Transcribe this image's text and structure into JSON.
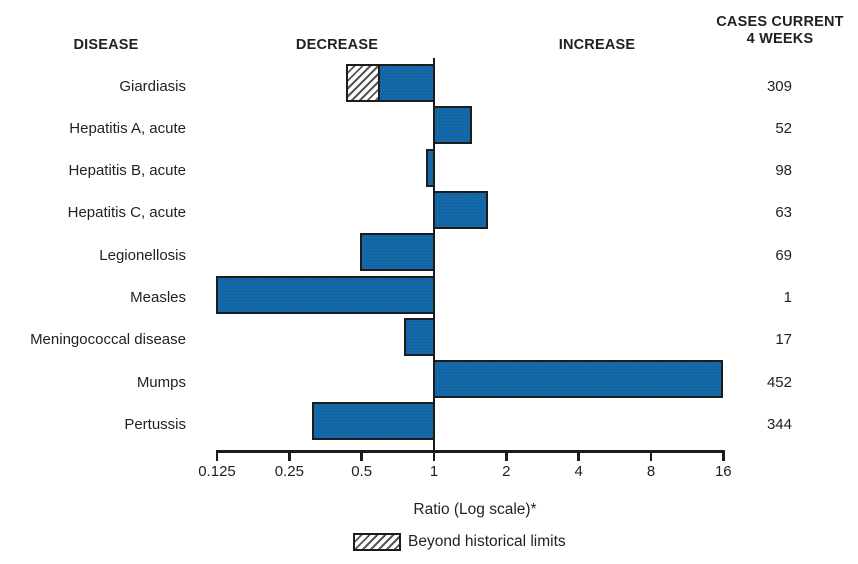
{
  "header": {
    "disease": "DISEASE",
    "decrease": "DECREASE",
    "increase": "INCREASE",
    "cases_line1": "CASES CURRENT",
    "cases_line2": "4 WEEKS"
  },
  "chart_data": {
    "type": "bar",
    "orientation": "horizontal",
    "scale": "log2",
    "baseline_ratio": 1,
    "title": "",
    "xlabel": "Ratio (Log scale)*",
    "axis_ticks": [
      0.125,
      0.25,
      0.5,
      1,
      2,
      4,
      8,
      16
    ],
    "axis_tick_labels": [
      "0.125",
      "0.25",
      "0.5",
      "1",
      "2",
      "4",
      "8",
      "16"
    ],
    "xlim": [
      0.125,
      16
    ],
    "rows": [
      {
        "disease": "Giardiasis",
        "ratio": 0.43,
        "cases": "309",
        "beyond_historical_limits": true,
        "beyond_from": 0.59
      },
      {
        "disease": "Hepatitis A, acute",
        "ratio": 1.44,
        "cases": "52",
        "beyond_historical_limits": false
      },
      {
        "disease": "Hepatitis B, acute",
        "ratio": 0.93,
        "cases": "98",
        "beyond_historical_limits": false
      },
      {
        "disease": "Hepatitis C, acute",
        "ratio": 1.68,
        "cases": "63",
        "beyond_historical_limits": false
      },
      {
        "disease": "Legionellosis",
        "ratio": 0.49,
        "cases": "69",
        "beyond_historical_limits": false
      },
      {
        "disease": "Measles",
        "ratio": 0.124,
        "cases": "1",
        "beyond_historical_limits": false
      },
      {
        "disease": "Meningococcal disease",
        "ratio": 0.75,
        "cases": "17",
        "beyond_historical_limits": false
      },
      {
        "disease": "Mumps",
        "ratio": 15.97,
        "cases": "452",
        "beyond_historical_limits": false
      },
      {
        "disease": "Pertussis",
        "ratio": 0.31,
        "cases": "344",
        "beyond_historical_limits": false
      }
    ],
    "legend": {
      "label": "Beyond historical limits",
      "swatch": "hatched"
    }
  },
  "colors": {
    "bar_fill": "#1169b8",
    "bar_border": "#1c1c1c",
    "text": "#231f20",
    "hatch_line": "#565656"
  }
}
